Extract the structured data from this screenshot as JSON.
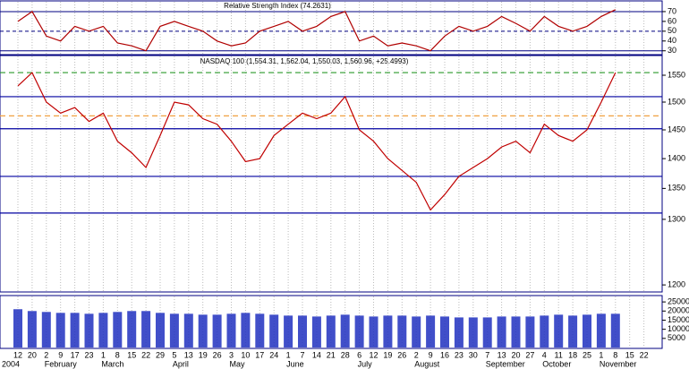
{
  "chart_data": [
    {
      "type": "line",
      "title": "Relative Strength Index (74.2631)",
      "values": [
        60,
        70,
        45,
        40,
        55,
        50,
        55,
        38,
        35,
        30,
        55,
        60,
        55,
        50,
        40,
        35,
        38,
        50,
        55,
        60,
        50,
        55,
        65,
        70,
        40,
        45,
        35,
        38,
        35,
        30,
        45,
        55,
        50,
        55,
        65,
        58,
        50,
        65,
        55,
        50,
        55,
        65,
        72,
        null,
        null
      ],
      "color": "#b00000",
      "ylim": [
        27,
        80
      ],
      "yticks": [
        30,
        40,
        50,
        60,
        70
      ],
      "levels": [
        30,
        50,
        70
      ]
    },
    {
      "type": "line",
      "title": "NASDAQ 100 (1,554.31, 1,562.04, 1,550.03, 1,560.96, +25.4993)",
      "values": [
        1530,
        1555,
        1500,
        1480,
        1490,
        1465,
        1480,
        1430,
        1410,
        1385,
        1440,
        1500,
        1495,
        1470,
        1460,
        1430,
        1395,
        1400,
        1440,
        1460,
        1480,
        1470,
        1480,
        1510,
        1450,
        1430,
        1400,
        1380,
        1360,
        1315,
        1340,
        1370,
        1385,
        1400,
        1420,
        1430,
        1410,
        1460,
        1440,
        1430,
        1450,
        1500,
        1555,
        null,
        null
      ],
      "color": "#c00000",
      "log_scale": true,
      "ylim": [
        1191,
        1586
      ],
      "yticks": [
        1200,
        1300,
        1350,
        1400,
        1450,
        1500,
        1550
      ],
      "levels": [
        {
          "value": 1555,
          "color": "#2a9a2a"
        },
        {
          "value": 1510,
          "color": "#0000a0"
        },
        {
          "value": 1475,
          "color": "#f0a040"
        },
        {
          "value": 1452,
          "color": "#0000a0"
        },
        {
          "value": 1370,
          "color": "#0000a0"
        },
        {
          "value": 1310,
          "color": "#0000a0"
        }
      ]
    },
    {
      "type": "bar",
      "values": [
        21000,
        20000,
        19500,
        19000,
        19000,
        18500,
        19000,
        19500,
        20000,
        20000,
        19000,
        18500,
        18500,
        18000,
        18000,
        18500,
        19000,
        18500,
        18000,
        17500,
        17500,
        17000,
        17500,
        18000,
        17500,
        17000,
        17500,
        17500,
        17000,
        17500,
        17000,
        16500,
        16500,
        16500,
        17000,
        17000,
        17000,
        17500,
        18000,
        17500,
        18000,
        18500,
        18500,
        null,
        null
      ],
      "color": "#2030c0",
      "ylim": [
        0,
        28000
      ],
      "yticks": [
        5000,
        10000,
        15000,
        20000,
        25000
      ],
      "categories": [
        "12",
        "20",
        "2",
        "9",
        "17",
        "23",
        "1",
        "8",
        "15",
        "22",
        "29",
        "5",
        "13",
        "19",
        "26",
        "3",
        "10",
        "17",
        "24",
        "1",
        "7",
        "14",
        "21",
        "28",
        "6",
        "12",
        "19",
        "26",
        "2",
        "9",
        "16",
        "23",
        "30",
        "7",
        "13",
        "20",
        "27",
        "4",
        "11",
        "18",
        "25",
        "1",
        "8",
        "15",
        "22"
      ],
      "months": [
        "2004",
        "February",
        "March",
        "April",
        "May",
        "June",
        "July",
        "August",
        "September",
        "October",
        "November"
      ]
    }
  ]
}
